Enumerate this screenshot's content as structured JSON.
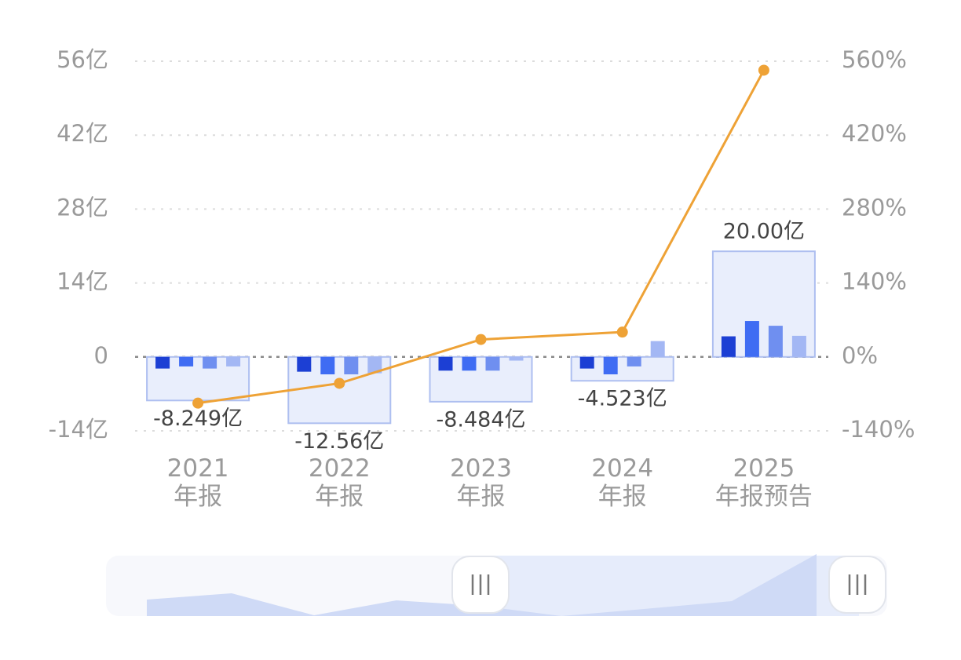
{
  "chart_data": {
    "type": "bar",
    "categories": [
      "2021\n年报",
      "2022\n年报",
      "2023\n年报",
      "2024\n年报",
      "2025\n年报预告"
    ],
    "values": [
      -8.249,
      -12.56,
      -8.484,
      -4.523,
      20.0
    ],
    "value_labels": [
      "-8.249亿",
      "-12.56亿",
      "-8.484亿",
      "-4.523亿",
      "20.00亿"
    ],
    "color": "#e9eefc",
    "edge_color": "#aebff0",
    "series": [
      {
        "type": "bar",
        "color": "#1c3fd4",
        "values": [
          -2.2,
          -2.8,
          -2.6,
          -2.2,
          3.9
        ]
      },
      {
        "type": "bar",
        "color": "#3f6cf3",
        "values": [
          -1.8,
          -3.3,
          -2.6,
          -3.3,
          6.8
        ]
      },
      {
        "type": "bar",
        "color": "#6f8ff0",
        "values": [
          -2.2,
          -3.3,
          -2.6,
          -1.8,
          5.9
        ]
      },
      {
        "type": "bar",
        "color": "#a3b7f4",
        "values": [
          -1.8,
          -3.1,
          -0.7,
          3.0,
          4.0
        ]
      },
      {
        "type": "line",
        "axis": "y2",
        "color": "#eea236",
        "values": [
          -87.5,
          -50,
          33,
          47,
          543
        ]
      }
    ],
    "ylim": [
      -14,
      56
    ],
    "yticks": [
      {
        "value": -14,
        "label": "-14亿"
      },
      0,
      {
        "value": 14,
        "label": "14亿"
      },
      {
        "value": 28,
        "label": "28亿"
      },
      {
        "value": 42,
        "label": "42亿"
      },
      {
        "value": 56,
        "label": "56亿"
      }
    ],
    "y2lim": [
      -140,
      560
    ],
    "y2ticks": [
      {
        "value": -140,
        "label": "-140%"
      },
      {
        "value": 0,
        "label": "0%"
      },
      {
        "value": 140,
        "label": "140%"
      },
      {
        "value": 280,
        "label": "280%"
      },
      {
        "value": 420,
        "label": "420%"
      },
      {
        "value": 560,
        "label": "560%"
      }
    ],
    "grid": true
  }
}
